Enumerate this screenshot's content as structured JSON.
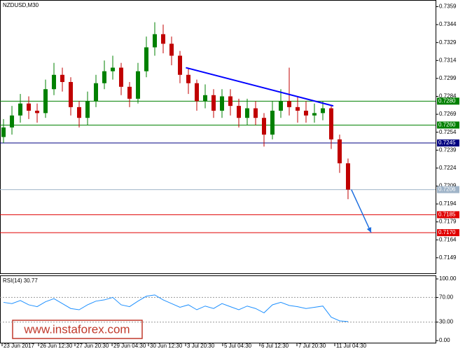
{
  "chart_data": {
    "type": "candlestick",
    "title": "NZDUSD,M30",
    "open": [
      0.725,
      0.7258,
      0.7268,
      0.7278,
      0.7272,
      0.727,
      0.729,
      0.7302,
      0.7296,
      0.7275,
      0.7266,
      0.728,
      0.7295,
      0.7305,
      0.7308,
      0.7292,
      0.7282,
      0.7305,
      0.7325,
      0.7336,
      0.7328,
      0.7318,
      0.7302,
      0.7295,
      0.728,
      0.7285,
      0.7272,
      0.7284,
      0.7276,
      0.7266,
      0.7274,
      0.7266,
      0.7252,
      0.7272,
      0.728,
      0.7275,
      0.7272,
      0.7268,
      0.727,
      0.7274,
      0.7248,
      0.7228
    ],
    "high": [
      0.7265,
      0.7276,
      0.7286,
      0.7284,
      0.7278,
      0.7298,
      0.7312,
      0.7308,
      0.73,
      0.728,
      0.7288,
      0.7302,
      0.7314,
      0.7318,
      0.7312,
      0.7296,
      0.7312,
      0.7334,
      0.7346,
      0.7344,
      0.7334,
      0.7322,
      0.7308,
      0.7298,
      0.7294,
      0.729,
      0.729,
      0.729,
      0.7282,
      0.7282,
      0.728,
      0.727,
      0.728,
      0.729,
      0.7308,
      0.7284,
      0.728,
      0.7278,
      0.728,
      0.7276,
      0.7252,
      0.7232
    ],
    "low": [
      0.7245,
      0.7252,
      0.7262,
      0.7265,
      0.7262,
      0.7266,
      0.7285,
      0.7288,
      0.7268,
      0.7258,
      0.726,
      0.7275,
      0.729,
      0.7298,
      0.7285,
      0.7275,
      0.7278,
      0.73,
      0.7318,
      0.732,
      0.731,
      0.7295,
      0.7286,
      0.7272,
      0.7274,
      0.7266,
      0.7266,
      0.7268,
      0.7258,
      0.726,
      0.726,
      0.7242,
      0.7248,
      0.7266,
      0.7268,
      0.7262,
      0.7262,
      0.7262,
      0.7264,
      0.724,
      0.722,
      0.7198
    ],
    "close": [
      0.7258,
      0.7268,
      0.7278,
      0.7272,
      0.727,
      0.729,
      0.7302,
      0.7296,
      0.7275,
      0.7266,
      0.728,
      0.7295,
      0.7305,
      0.7308,
      0.7292,
      0.7282,
      0.7305,
      0.7325,
      0.7336,
      0.7328,
      0.7318,
      0.7302,
      0.7295,
      0.728,
      0.7285,
      0.7272,
      0.7284,
      0.7276,
      0.7266,
      0.7274,
      0.7266,
      0.7252,
      0.7272,
      0.728,
      0.7275,
      0.7272,
      0.7268,
      0.727,
      0.7274,
      0.7248,
      0.7228,
      0.7206
    ],
    "up_color": "#008000",
    "down_color": "#c00000",
    "xlim": [
      -0.42,
      51.42
    ],
    "xticks": [
      {
        "value": -0.17,
        "label": "23 Jun 2017"
      },
      {
        "value": 4.17,
        "label": "26 Jun 12:30"
      },
      {
        "value": 8.5,
        "label": "27 Jun 20:30"
      },
      {
        "value": 12.92,
        "label": "29 Jun 04:30"
      },
      {
        "value": 17.25,
        "label": "30 Jun 12:30"
      },
      {
        "value": 21.67,
        "label": "3 Jul 20:30"
      },
      {
        "value": 26.08,
        "label": "5 Jul 04:30"
      },
      {
        "value": 30.5,
        "label": "6 Jul 12:30"
      },
      {
        "value": 34.92,
        "label": "7 Jul 20:30"
      },
      {
        "value": 39.42,
        "label": "11 Jul 04:30"
      }
    ],
    "ylim": [
      0.7136,
      0.7364
    ],
    "yticks": [
      0.7359,
      0.7344,
      0.7329,
      0.7314,
      0.7299,
      0.7284,
      0.7269,
      0.7254,
      0.7239,
      0.7224,
      0.7209,
      0.7194,
      0.7179,
      0.7164,
      0.7149
    ],
    "levels": [
      {
        "value": 0.728,
        "label": "0.7280",
        "color": "#008000"
      },
      {
        "value": 0.726,
        "label": "0.7260",
        "color": "#008000"
      },
      {
        "value": 0.7245,
        "label": "0.7245",
        "color": "#000080"
      },
      {
        "value": 0.7206,
        "label": "0.7206",
        "color": "#a0b4c8"
      },
      {
        "value": 0.7185,
        "label": "0.7185",
        "color": "#e00000"
      },
      {
        "value": 0.717,
        "label": "0.7170",
        "color": "#e00000"
      }
    ],
    "trendline": {
      "x": [
        21.7,
        39.25
      ],
      "y": [
        0.7308,
        0.7276
      ],
      "color": "#0000ff"
    },
    "arrow": {
      "x": [
        41.4,
        43.75
      ],
      "y": [
        0.7206,
        0.717
      ],
      "color": "#1e6fe0"
    },
    "rsi": {
      "label": "RSI(14) 30.77",
      "color": "#1e90ff",
      "ylim": [
        0,
        100
      ],
      "yticks": [
        {
          "value": 100,
          "label": "100.00"
        },
        {
          "value": 70,
          "label": "70.00"
        },
        {
          "value": 30,
          "label": "30.00"
        },
        {
          "value": 0,
          "label": "0.00"
        }
      ],
      "values": [
        62,
        60,
        65,
        58,
        55,
        63,
        68,
        60,
        52,
        50,
        58,
        64,
        66,
        70,
        58,
        55,
        64,
        72,
        74,
        66,
        60,
        54,
        58,
        50,
        56,
        52,
        60,
        55,
        50,
        56,
        52,
        45,
        58,
        62,
        57,
        55,
        52,
        54,
        56,
        38,
        32,
        30.77
      ]
    },
    "watermark": "www.instaforex.com"
  }
}
